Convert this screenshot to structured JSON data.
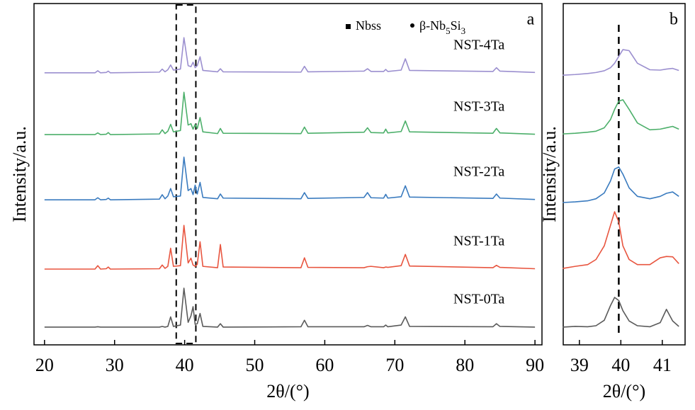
{
  "chart_data": [
    {
      "type": "line",
      "panel_label": "a",
      "x_label": "2θ/(°)",
      "y_label": "Intensity/a.u.",
      "xlim": [
        18.5,
        91
      ],
      "xticks": [
        20,
        30,
        40,
        50,
        60,
        70,
        80,
        90
      ],
      "ylim": [
        0,
        100
      ],
      "highlight": [
        38.8,
        41.6
      ],
      "legend": [
        {
          "symbol": "square",
          "name": "Nbss"
        },
        {
          "symbol": "dot",
          "name": "β-Nb5Si3"
        }
      ],
      "x": [
        20,
        27.2,
        27.6,
        28,
        28.8,
        29.1,
        29.4,
        36.4,
        36.8,
        37.2,
        37.6,
        38,
        38.4,
        39.4,
        39.9,
        40.5,
        40.9,
        41.2,
        41.5,
        41.8,
        42.2,
        42.6,
        44.7,
        45.1,
        45.5,
        56.6,
        57.1,
        57.6,
        65.6,
        66.1,
        66.6,
        68.4,
        68.7,
        69.0,
        70.9,
        71.5,
        72.1,
        84.0,
        84.5,
        85.0,
        90
      ],
      "series": [
        {
          "name": "NST-0Ta",
          "color": "#5a5a5a",
          "values": [
            5.2,
            5.2,
            5.3,
            5.2,
            5.2,
            5.2,
            5.2,
            5.2,
            5.4,
            5.2,
            5.4,
            8.2,
            5.4,
            5.8,
            16.6,
            6.6,
            8.5,
            11.2,
            6.0,
            6.2,
            9.2,
            5.4,
            5.2,
            6.2,
            5.2,
            5.3,
            7.2,
            5.3,
            5.3,
            5.7,
            5.3,
            5.3,
            5.8,
            5.3,
            5.8,
            8.2,
            5.4,
            5.3,
            6.2,
            5.4,
            5.2
          ]
        },
        {
          "name": "NST-1Ta",
          "color": "#e8553f",
          "values": [
            22.2,
            22.2,
            23.2,
            22.2,
            22.3,
            22.8,
            22.2,
            22.3,
            23.4,
            22.4,
            23,
            28.3,
            23,
            23.2,
            35,
            24,
            25.4,
            23.4,
            23,
            23.6,
            30.2,
            23,
            22.6,
            29.4,
            22.8,
            22.6,
            25.5,
            22.7,
            22.6,
            22.9,
            23,
            22.6,
            22.8,
            22.7,
            23.2,
            26.5,
            23.1,
            22.6,
            23.3,
            22.7,
            22.3
          ]
        },
        {
          "name": "NST-2Ta",
          "color": "#3a7bbf",
          "values": [
            42.5,
            42.5,
            43.1,
            42.5,
            42.6,
            43,
            42.5,
            42.7,
            44,
            42.8,
            43.6,
            45.8,
            43.4,
            43.6,
            55,
            45.2,
            45.8,
            44,
            46.8,
            44.2,
            47.6,
            43.2,
            42.8,
            44.2,
            43,
            42.8,
            44.6,
            42.9,
            43.2,
            44.6,
            43.1,
            43,
            44.1,
            43,
            43.4,
            46.6,
            43.3,
            42.9,
            44.2,
            43,
            42.6
          ]
        },
        {
          "name": "NST-3Ta",
          "color": "#4caf6a",
          "values": [
            61.6,
            61.6,
            62.1,
            61.6,
            61.7,
            62.2,
            61.6,
            61.8,
            63,
            61.9,
            62.6,
            64.6,
            62.4,
            62.8,
            74,
            64.4,
            64.8,
            63.2,
            64.6,
            63.4,
            66.6,
            62.4,
            61.9,
            63.4,
            62.0,
            61.9,
            63.8,
            62,
            62.3,
            63.6,
            62.2,
            62.1,
            63.2,
            62.1,
            62.5,
            65.6,
            62.4,
            62,
            63.4,
            62.1,
            61.7
          ]
        },
        {
          "name": "NST-4Ta",
          "color": "#9b8fcf",
          "values": [
            79.7,
            79.7,
            80.3,
            79.7,
            79.8,
            80.2,
            79.7,
            79.9,
            80.8,
            80,
            80.6,
            82,
            80.5,
            80.8,
            90,
            81.8,
            81.5,
            82.8,
            81.2,
            81.8,
            84.4,
            80.4,
            80,
            80.9,
            80,
            79.9,
            81.6,
            80,
            80.2,
            80.9,
            80.1,
            80.1,
            80.7,
            80.1,
            80.5,
            83.8,
            80.4,
            80.1,
            81.2,
            80.2,
            79.8
          ]
        }
      ]
    },
    {
      "type": "line",
      "panel_label": "b",
      "x_label": "2θ/(°)",
      "y_label": "Intensity/a.u.",
      "xlim": [
        38.61,
        41.55
      ],
      "xticks": [
        39,
        40,
        41
      ],
      "ylim": [
        0,
        100
      ],
      "vline": 39.95,
      "x": [
        38.6,
        38.9,
        39.2,
        39.4,
        39.6,
        39.75,
        39.85,
        39.95,
        40.05,
        40.2,
        40.4,
        40.7,
        40.95,
        41.1,
        41.25,
        41.4
      ],
      "series": [
        {
          "color": "#5a5a5a",
          "values": [
            5.2,
            5.4,
            5.3,
            5.6,
            7.2,
            11.5,
            13.9,
            13,
            10,
            7,
            5.6,
            5.3,
            6.5,
            10.4,
            7,
            5.4
          ]
        },
        {
          "color": "#e8553f",
          "values": [
            22.4,
            23,
            23.5,
            25,
            29,
            35,
            39,
            36,
            29,
            25,
            23.5,
            23.5,
            25.5,
            25.9,
            25.8,
            23.8
          ]
        },
        {
          "color": "#3a7bbf",
          "values": [
            41.7,
            41.9,
            42.2,
            42.8,
            44.5,
            48,
            51.5,
            52.1,
            50,
            46,
            43.5,
            42.8,
            43.5,
            44.4,
            44.8,
            43.5
          ]
        },
        {
          "color": "#4caf6a",
          "values": [
            61.8,
            62,
            62.3,
            62.6,
            63.6,
            66,
            69,
            71.4,
            71.8,
            69,
            65,
            63,
            63.2,
            63.6,
            64,
            63.2
          ]
        },
        {
          "color": "#9b8fcf",
          "values": [
            79,
            79.2,
            79.5,
            79.8,
            80.3,
            81.2,
            82.5,
            84.5,
            86.5,
            86.2,
            82.5,
            80.6,
            80.5,
            80.8,
            81,
            80.4
          ]
        }
      ]
    }
  ]
}
